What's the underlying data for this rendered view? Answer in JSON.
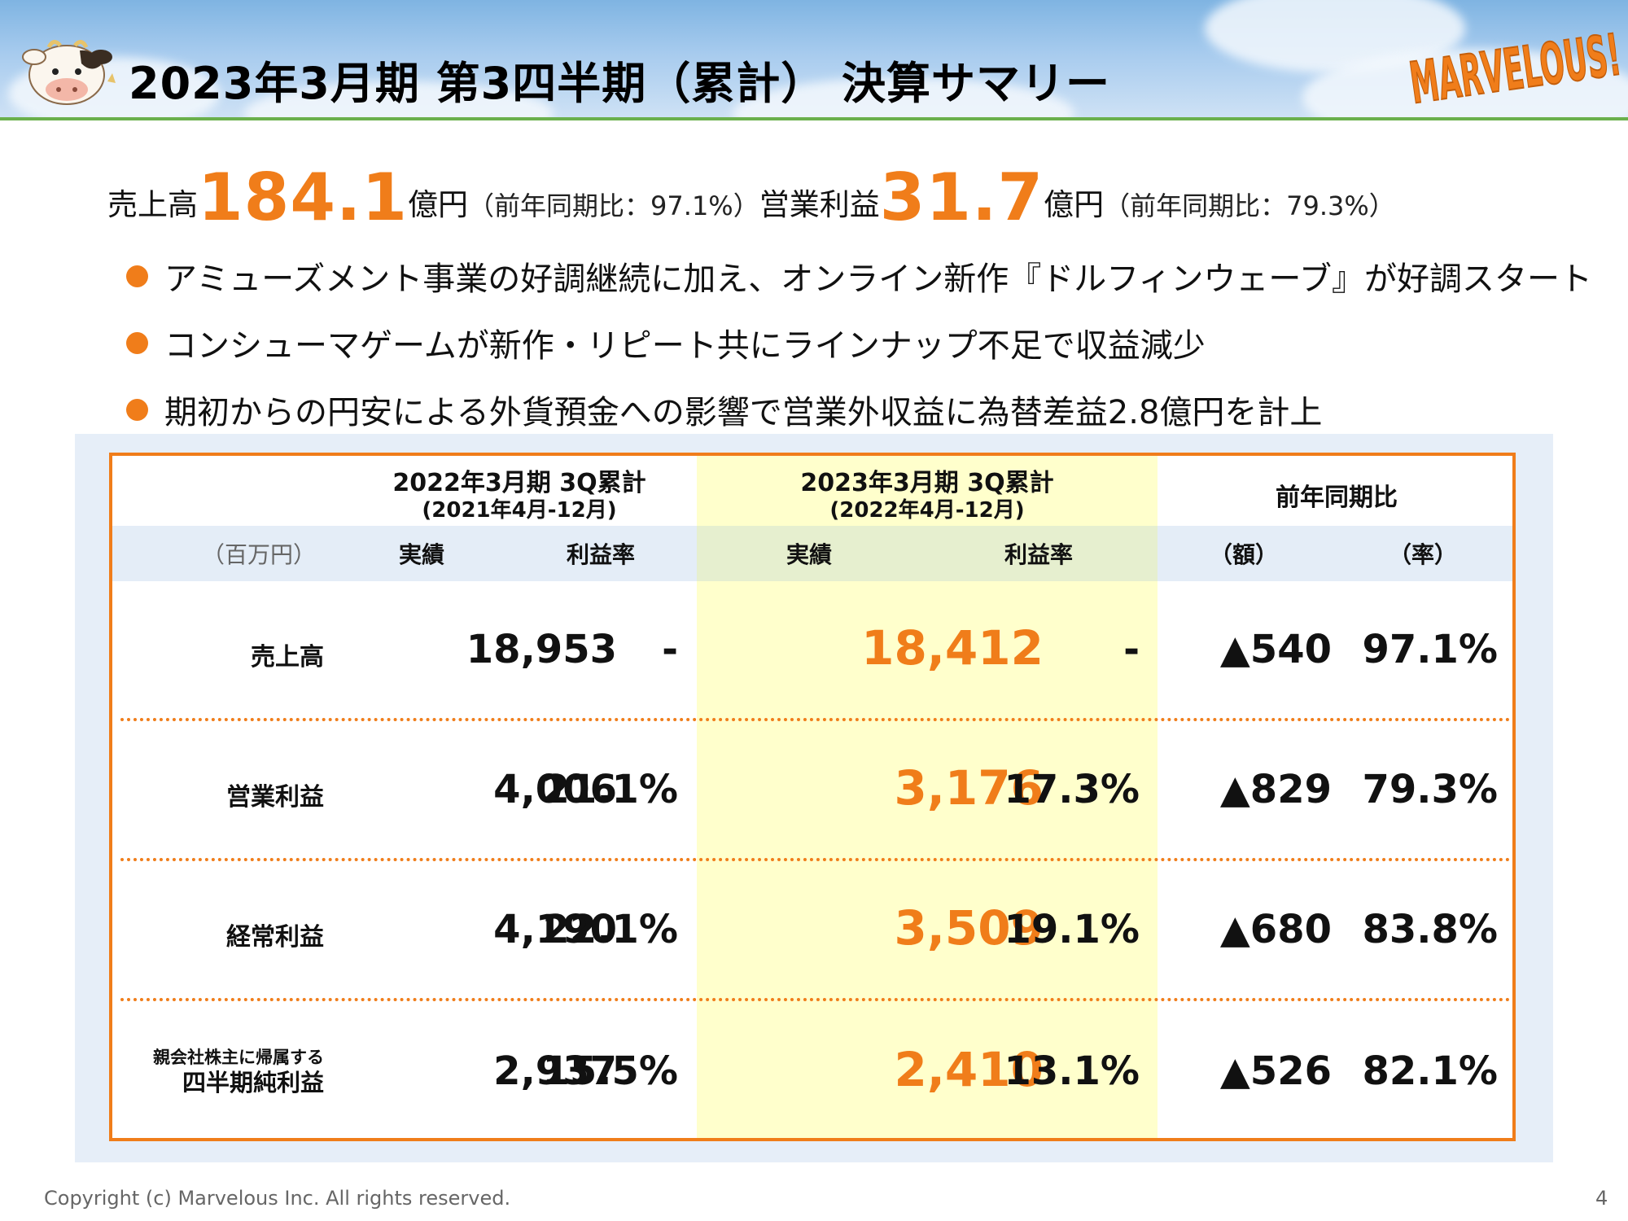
{
  "header": {
    "title": "2023年3月期 第3四半期（累計） 決算サマリー",
    "logo_text": "MARVELOUS!"
  },
  "summary": {
    "sales_label": "売上高",
    "sales_value": "184.1",
    "sales_unit": "億円",
    "sales_ratio": "（前年同期比：97.1%）",
    "op_label": "営業利益",
    "op_value": "31.7",
    "op_unit": "億円",
    "op_ratio": "（前年同期比：79.3%）"
  },
  "bullets": [
    "アミューズメント事業の好調継続に加え、オンライン新作『ドルフィンウェーブ』が好調スタート",
    "コンシューマゲームが新作・リピート共にラインナップ不足で収益減少",
    "期初からの円安による外貨預金への影響で営業外収益に為替差益2.8億円を計上"
  ],
  "table": {
    "group_prev": {
      "title": "2022年3月期 3Q累計",
      "period": "(2021年4月-12月)"
    },
    "group_curr": {
      "title": "2023年3月期 3Q累計",
      "period": "(2022年4月-12月)"
    },
    "group_yoy": {
      "title": "前年同期比"
    },
    "unit": "（百万円）",
    "col_actual": "実績",
    "col_margin": "利益率",
    "col_amount": "（額）",
    "col_rate": "（率）",
    "rows": [
      {
        "label": "売上高",
        "prev_actual": "18,953",
        "prev_margin": "-",
        "curr_actual": "18,412",
        "curr_margin": "-",
        "yoy_amount": "▲540",
        "yoy_rate": "97.1%"
      },
      {
        "label": "営業利益",
        "prev_actual": "4,006",
        "prev_margin": "21.1%",
        "curr_actual": "3,176",
        "curr_margin": "17.3%",
        "yoy_amount": "▲829",
        "yoy_rate": "79.3%"
      },
      {
        "label": "経常利益",
        "prev_actual": "4,190",
        "prev_margin": "22.1%",
        "curr_actual": "3,509",
        "curr_margin": "19.1%",
        "yoy_amount": "▲680",
        "yoy_rate": "83.8%"
      },
      {
        "label_line1": "親会社株主に帰属する",
        "label_line2": "四半期純利益",
        "prev_actual": "2,937",
        "prev_margin": "15.5%",
        "curr_actual": "2,410",
        "curr_margin": "13.1%",
        "yoy_amount": "▲526",
        "yoy_rate": "82.1%"
      }
    ]
  },
  "footer": {
    "copyright": "Copyright (c) Marvelous Inc. All rights reserved.",
    "page": "4"
  },
  "colors": {
    "accent": "#f07d1a",
    "header_line": "#6ab04c",
    "highlight": "#ffffcc",
    "panel": "#e6eef8"
  }
}
